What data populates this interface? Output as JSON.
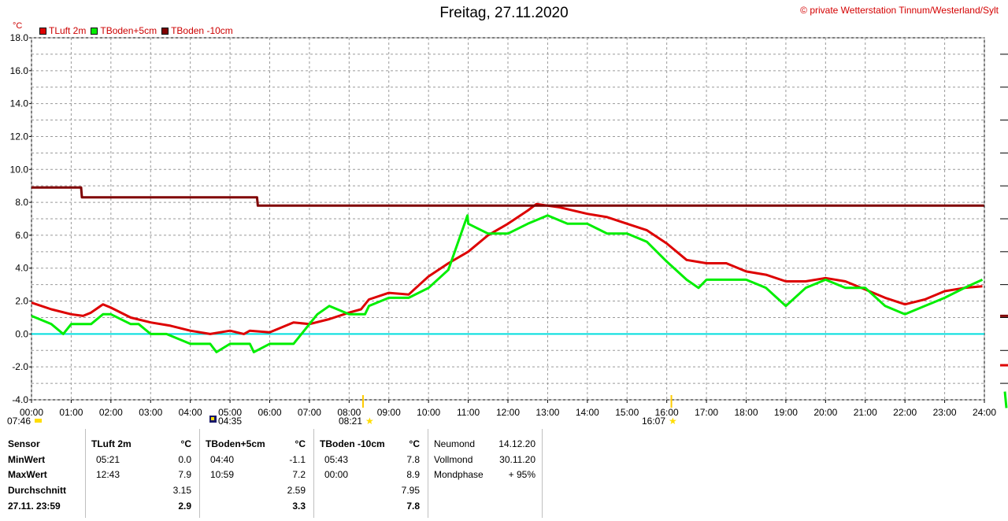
{
  "header": {
    "title": "Freitag, 27.11.2020",
    "credit": "© private Wetterstation Tinnum/Westerland/Sylt",
    "unit": "°C"
  },
  "legend": [
    {
      "label": "TLuft 2m",
      "color": "#dd0000"
    },
    {
      "label": "TBoden+5cm",
      "color": "#00ee00"
    },
    {
      "label": "TBoden -10cm",
      "color": "#800000"
    }
  ],
  "chart_data": {
    "type": "line",
    "title": "Freitag, 27.11.2020",
    "ylabel": "°C",
    "ylim": [
      -4,
      18
    ],
    "xlim": [
      0,
      24
    ],
    "y_ticks": [
      "18.0",
      "16.0",
      "14.0",
      "12.0",
      "10.0",
      "8.0",
      "6.0",
      "4.0",
      "2.0",
      "0.0",
      "-2.0",
      "-4.0"
    ],
    "x_ticks": [
      "00:00",
      "01:00",
      "02:00",
      "03:00",
      "04:00",
      "05:00",
      "06:00",
      "07:00",
      "08:00",
      "09:00",
      "10:00",
      "11:00",
      "12:00",
      "13:00",
      "14:00",
      "15:00",
      "16:00",
      "17:00",
      "18:00",
      "19:00",
      "20:00",
      "21:00",
      "22:00",
      "23:00",
      "24:00"
    ],
    "grid": true,
    "reference_line": {
      "y": 0,
      "color": "#00dddd"
    },
    "series": [
      {
        "name": "TLuft 2m",
        "color": "#dd0000",
        "x": [
          0,
          0.5,
          1,
          1.3,
          1.5,
          1.8,
          2,
          2.5,
          3,
          3.5,
          4,
          4.5,
          5,
          5.35,
          5.5,
          6,
          6.3,
          6.6,
          7,
          7.5,
          8,
          8.3,
          8.5,
          9,
          9.5,
          10,
          10.5,
          11,
          11.5,
          12,
          12.5,
          12.72,
          13,
          13.3,
          14,
          14.5,
          15,
          15.5,
          16,
          16.5,
          17,
          17.5,
          18,
          18.5,
          19,
          19.5,
          20,
          20.5,
          21,
          21.5,
          22,
          22.5,
          23,
          23.5,
          23.95
        ],
        "y": [
          1.9,
          1.5,
          1.2,
          1.1,
          1.3,
          1.8,
          1.6,
          1.0,
          0.7,
          0.5,
          0.2,
          0.0,
          0.2,
          0.0,
          0.2,
          0.1,
          0.4,
          0.7,
          0.6,
          0.9,
          1.3,
          1.5,
          2.1,
          2.5,
          2.4,
          3.5,
          4.3,
          5.0,
          6.0,
          6.7,
          7.5,
          7.9,
          7.8,
          7.7,
          7.3,
          7.1,
          6.7,
          6.3,
          5.5,
          4.5,
          4.3,
          4.3,
          3.8,
          3.6,
          3.2,
          3.2,
          3.4,
          3.2,
          2.7,
          2.2,
          1.8,
          2.1,
          2.6,
          2.8,
          2.9
        ]
      },
      {
        "name": "TBoden+5cm",
        "color": "#00ee00",
        "x": [
          0,
          0.5,
          0.8,
          1,
          1.5,
          1.8,
          2,
          2.5,
          2.7,
          3,
          3.3,
          3.4,
          4,
          4.5,
          4.66,
          5,
          5.5,
          5.6,
          6,
          6.3,
          6.6,
          7,
          7.2,
          7.5,
          8,
          8.4,
          8.5,
          9,
          9.5,
          10,
          10.5,
          10.98,
          11,
          11.5,
          12,
          12.5,
          13,
          13.5,
          14,
          14.5,
          15,
          15.5,
          16,
          16.5,
          16.8,
          17,
          17.5,
          18,
          18.5,
          19,
          19.5,
          20,
          20.5,
          21,
          21.5,
          22,
          22.5,
          23,
          23.5,
          23.95
        ],
        "y": [
          1.1,
          0.6,
          0.0,
          0.6,
          0.6,
          1.2,
          1.2,
          0.6,
          0.6,
          0.0,
          0.0,
          0.0,
          -0.6,
          -0.6,
          -1.1,
          -0.6,
          -0.6,
          -1.1,
          -0.6,
          -0.6,
          -0.6,
          0.6,
          1.2,
          1.7,
          1.2,
          1.2,
          1.7,
          2.2,
          2.2,
          2.8,
          3.9,
          7.2,
          6.7,
          6.1,
          6.1,
          6.7,
          7.2,
          6.7,
          6.7,
          6.1,
          6.1,
          5.6,
          4.4,
          3.3,
          2.8,
          3.3,
          3.3,
          3.3,
          2.8,
          1.7,
          2.8,
          3.3,
          2.8,
          2.8,
          1.7,
          1.2,
          1.7,
          2.2,
          2.8,
          3.3
        ]
      },
      {
        "name": "TBoden -10cm",
        "color": "#800000",
        "x": [
          0,
          1.25,
          1.27,
          5.68,
          5.7,
          23.99
        ],
        "y": [
          8.9,
          8.9,
          8.3,
          8.3,
          7.8,
          7.8
        ]
      }
    ],
    "markers": {
      "sunrise": "08:21",
      "sunset": "16:07",
      "moonrise": "07:46",
      "moonset": "04:35"
    }
  },
  "stats": {
    "sensor": {
      "header": "Sensor",
      "min": "MinWert",
      "max": "MaxWert",
      "avg": "Durchschnitt",
      "now": "27.11. 23:59"
    },
    "cols": [
      {
        "name": "TLuft 2m",
        "unit": "°C",
        "min_time": "05:21",
        "min_val": "0.0",
        "max_time": "12:43",
        "max_val": "7.9",
        "avg": "3.15",
        "now": "2.9"
      },
      {
        "name": "TBoden+5cm",
        "unit": "°C",
        "min_time": "04:40",
        "min_val": "-1.1",
        "max_time": "10:59",
        "max_val": "7.2",
        "avg": "2.59",
        "now": "3.3"
      },
      {
        "name": "TBoden -10cm",
        "unit": "°C",
        "min_time": "05:43",
        "min_val": "7.8",
        "max_time": "00:00",
        "max_val": "8.9",
        "avg": "7.95",
        "now": "7.8"
      }
    ],
    "moon": [
      {
        "label": "Neumond",
        "value": "14.12.20"
      },
      {
        "label": "Vollmond",
        "value": "30.11.20"
      },
      {
        "label": "Mondphase",
        "value": "+ 95%"
      }
    ]
  }
}
